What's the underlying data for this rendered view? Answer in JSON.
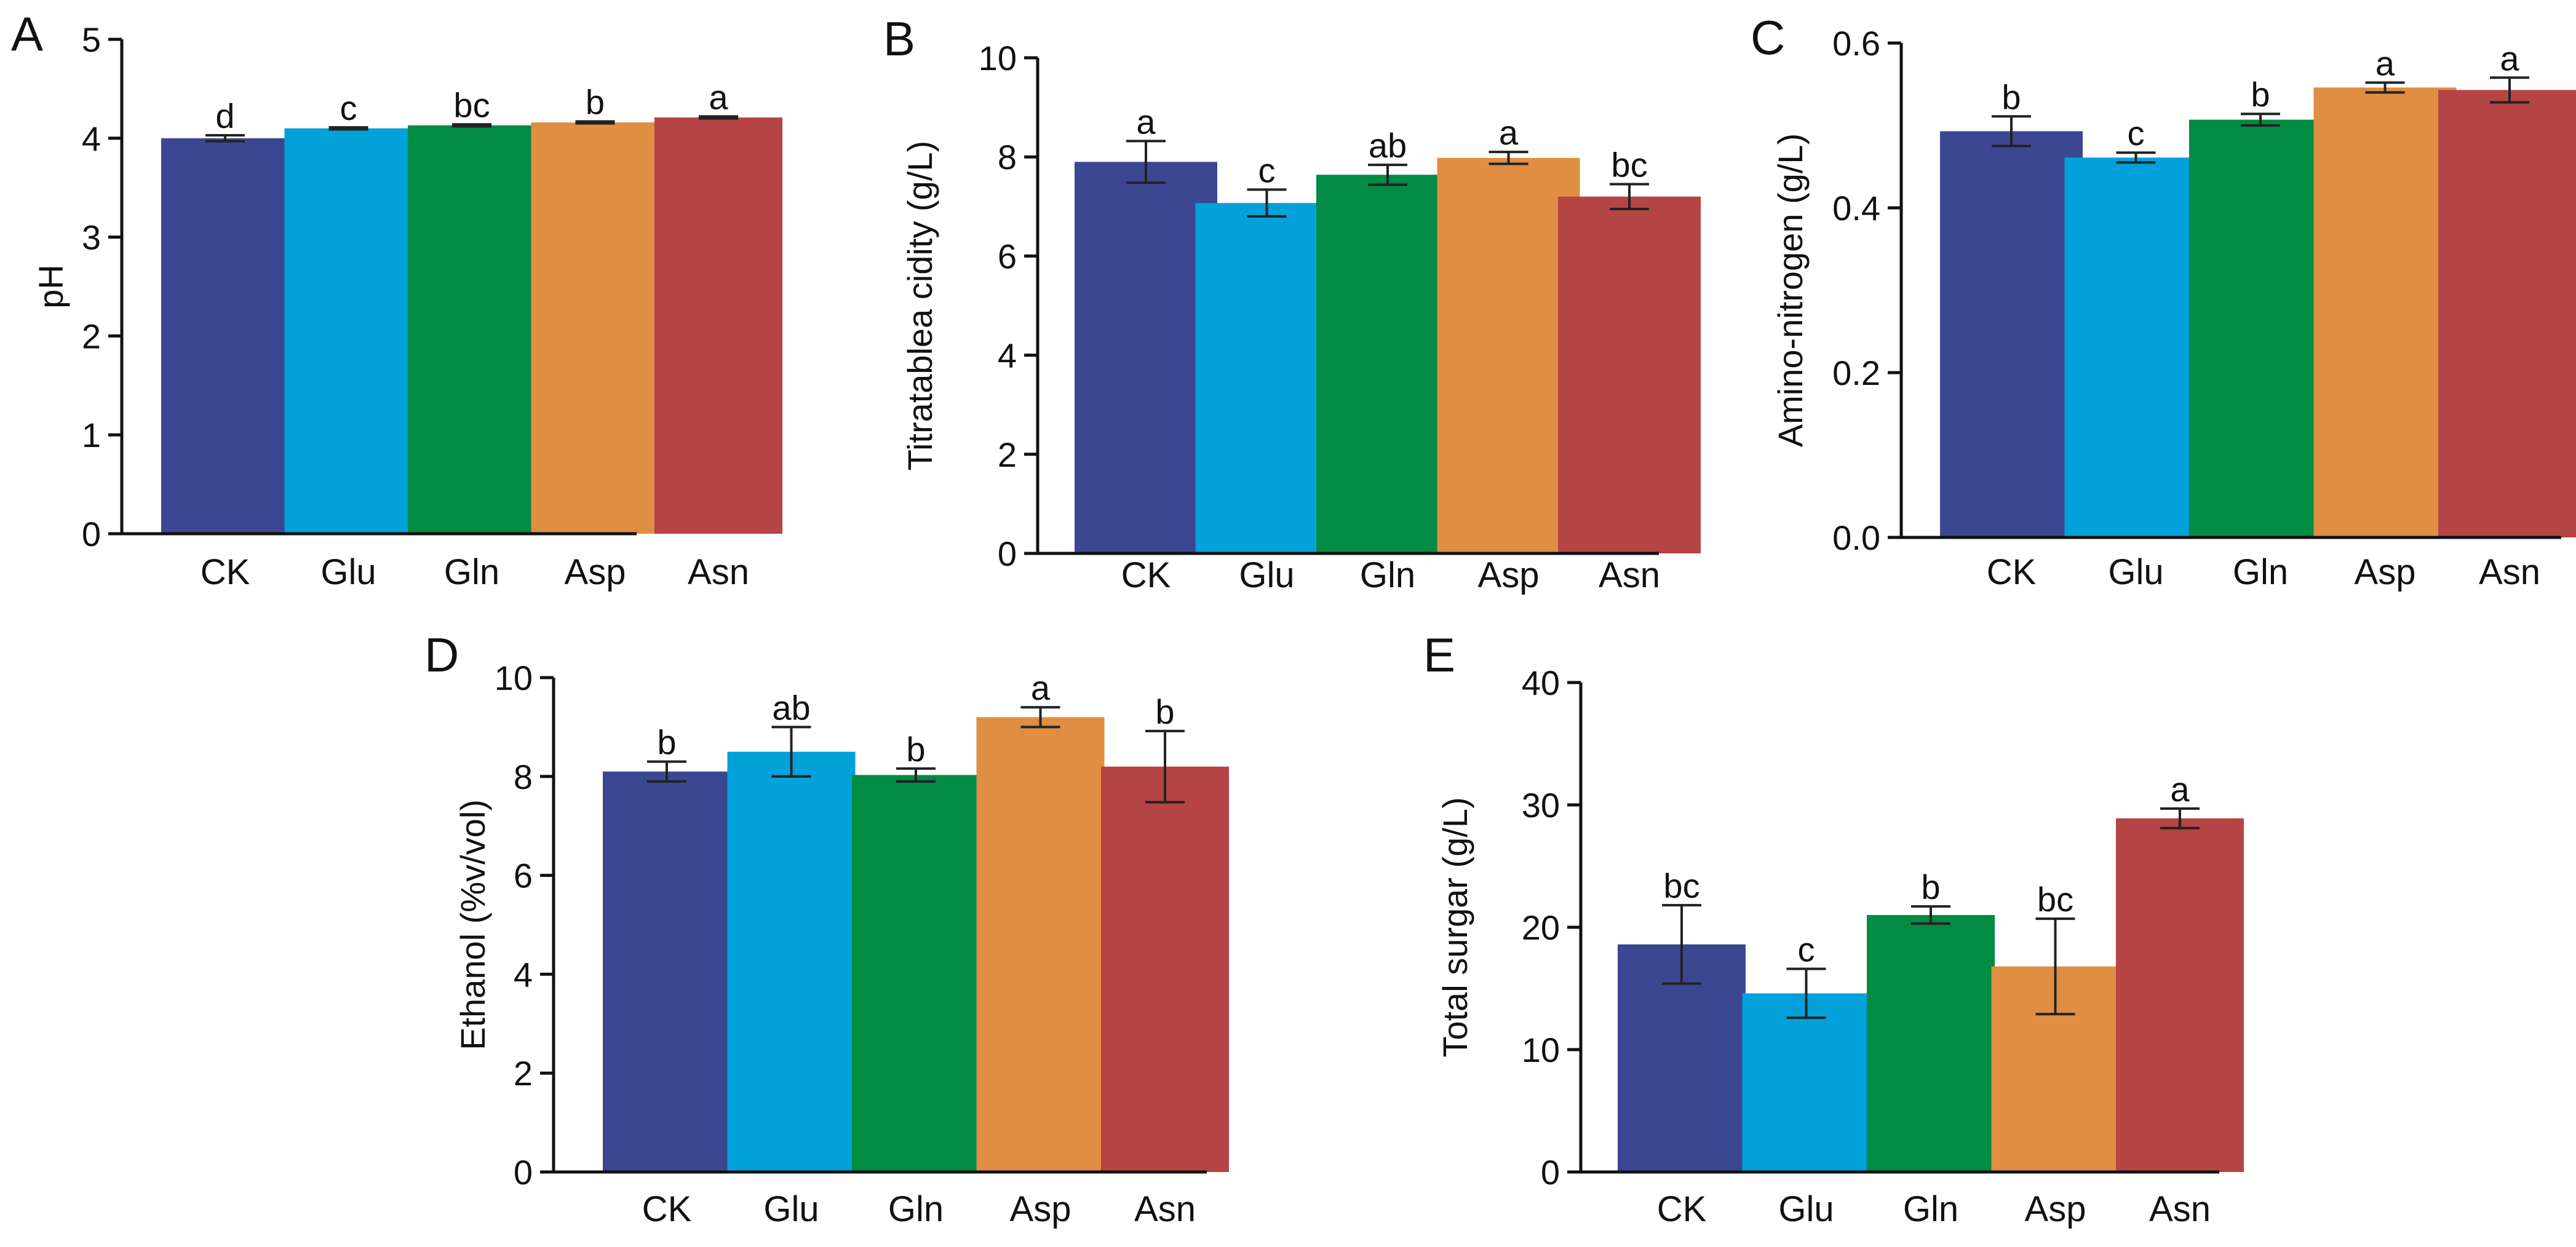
{
  "chart_data": [
    {
      "type": "bar",
      "panel": "A",
      "title": "",
      "xlabel": "",
      "ylabel": "pH",
      "categories": [
        "CK",
        "Glu",
        "Gln",
        "Asp",
        "Asn"
      ],
      "values": [
        4.0,
        4.1,
        4.13,
        4.16,
        4.21
      ],
      "errors": [
        0.03,
        0.01,
        0.01,
        0.01,
        0.01
      ],
      "significance": [
        "d",
        "c",
        "bc",
        "b",
        "a"
      ],
      "ylim": [
        0,
        5
      ],
      "yticks": [
        0,
        1,
        2,
        3,
        4,
        5
      ],
      "ytick_labels": [
        "0",
        "1",
        "2",
        "3",
        "4",
        "5"
      ]
    },
    {
      "type": "bar",
      "panel": "B",
      "title": "",
      "xlabel": "",
      "ylabel": "Titratablea cidity (g/L)",
      "categories": [
        "CK",
        "Glu",
        "Gln",
        "Asp",
        "Asn"
      ],
      "values": [
        7.9,
        7.07,
        7.64,
        7.98,
        7.2
      ],
      "errors": [
        0.42,
        0.27,
        0.2,
        0.12,
        0.25
      ],
      "significance": [
        "a",
        "c",
        "ab",
        "a",
        "bc"
      ],
      "ylim": [
        0,
        10
      ],
      "yticks": [
        0,
        2,
        4,
        6,
        8,
        10
      ],
      "ytick_labels": [
        "0",
        "2",
        "4",
        "6",
        "8",
        "10"
      ]
    },
    {
      "type": "bar",
      "panel": "C",
      "title": "",
      "xlabel": "",
      "ylabel": "Amino-nitrogen (g/L)",
      "categories": [
        "CK",
        "Glu",
        "Gln",
        "Asp",
        "Asn"
      ],
      "values": [
        0.493,
        0.461,
        0.507,
        0.546,
        0.543
      ],
      "errors": [
        0.018,
        0.006,
        0.007,
        0.006,
        0.015
      ],
      "significance": [
        "b",
        "c",
        "b",
        "a",
        "a"
      ],
      "ylim": [
        0,
        0.6
      ],
      "yticks": [
        0,
        0.2,
        0.4,
        0.6
      ],
      "ytick_labels": [
        "0.0",
        "0.2",
        "0.4",
        "0.6"
      ]
    },
    {
      "type": "bar",
      "panel": "D",
      "title": "",
      "xlabel": "",
      "ylabel": "Ethanol (%v/vol)",
      "categories": [
        "CK",
        "Glu",
        "Gln",
        "Asp",
        "Asn"
      ],
      "values": [
        8.1,
        8.5,
        8.03,
        9.2,
        8.2
      ],
      "errors": [
        0.2,
        0.5,
        0.13,
        0.2,
        0.72
      ],
      "significance": [
        "b",
        "ab",
        "b",
        "a",
        "b"
      ],
      "ylim": [
        0,
        10
      ],
      "yticks": [
        0,
        2,
        4,
        6,
        8,
        10
      ],
      "ytick_labels": [
        "0",
        "2",
        "4",
        "6",
        "8",
        "10"
      ]
    },
    {
      "type": "bar",
      "panel": "E",
      "title": "",
      "xlabel": "",
      "ylabel": "Total surgar (g/L)",
      "categories": [
        "CK",
        "Glu",
        "Gln",
        "Asp",
        "Asn"
      ],
      "values": [
        18.6,
        14.6,
        21.0,
        16.8,
        28.9
      ],
      "errors": [
        3.2,
        2.0,
        0.7,
        3.9,
        0.8
      ],
      "significance": [
        "bc",
        "c",
        "b",
        "bc",
        "a"
      ],
      "ylim": [
        0,
        40
      ],
      "yticks": [
        0,
        10,
        20,
        30,
        40
      ],
      "ytick_labels": [
        "0",
        "10",
        "20",
        "30",
        "40"
      ]
    }
  ],
  "colors": {
    "CK": "#3b4891",
    "Glu": "#03a1da",
    "Gln": "#028b43",
    "Asp": "#df8e42",
    "Asn": "#b54444"
  }
}
